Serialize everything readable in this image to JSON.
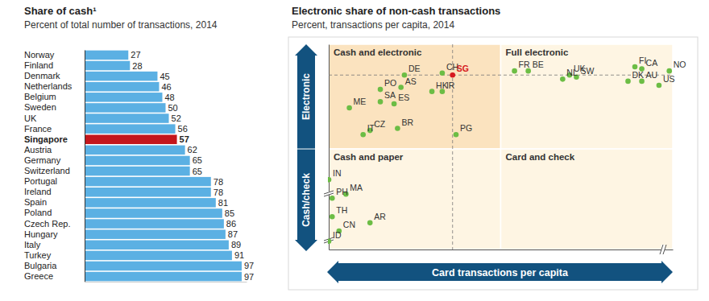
{
  "chart_data": [
    {
      "type": "bar",
      "title": "Share of cash¹",
      "subtitle": "Percent of total number of transactions, 2014",
      "orientation": "horizontal",
      "categories": [
        "Norway",
        "Finland",
        "Denmark",
        "Netherlands",
        "Belgium",
        "Sweden",
        "UK",
        "France",
        "Singapore",
        "Austria",
        "Germany",
        "Switzerland",
        "Portugal",
        "Ireland",
        "Spain",
        "Poland",
        "Czech Rep.",
        "Hungary",
        "Italy",
        "Turkey",
        "Bulgaria",
        "Greece"
      ],
      "values": [
        27,
        28,
        45,
        46,
        48,
        50,
        52,
        56,
        57,
        62,
        65,
        65,
        78,
        78,
        81,
        85,
        86,
        87,
        89,
        91,
        97,
        97
      ],
      "colors": [
        "#5bb0e3",
        "#5bb0e3",
        "#5bb0e3",
        "#5bb0e3",
        "#5bb0e3",
        "#5bb0e3",
        "#5bb0e3",
        "#5bb0e3",
        "#c4161c",
        "#5bb0e3",
        "#5bb0e3",
        "#5bb0e3",
        "#5bb0e3",
        "#5bb0e3",
        "#5bb0e3",
        "#5bb0e3",
        "#5bb0e3",
        "#5bb0e3",
        "#5bb0e3",
        "#5bb0e3",
        "#5bb0e3",
        "#5bb0e3"
      ],
      "xlim": [
        0,
        100
      ],
      "xticks": [],
      "tick_labels": "y",
      "data_labels": true
    },
    {
      "type": "scatter",
      "title": "Electronic share of non-cash transactions",
      "subtitle": "Percent, transactions per capita, 2014",
      "xlabel": "Card transactions per capita",
      "ylabel": {
        "high": "Electronic",
        "low": "Cash/check"
      },
      "point_labels": [
        "DE",
        "CH",
        "SG",
        "PO",
        "AS",
        "HK",
        "IR",
        "ME",
        "SA",
        "ES",
        "CZ",
        "IT",
        "BR",
        "PG",
        "FR",
        "BE",
        "UK",
        "SW",
        "NL",
        "FI",
        "CA",
        "NO",
        "DK",
        "AU",
        "US",
        "IN",
        "MA",
        "PH",
        "TH",
        "AR",
        "CN",
        "ID"
      ],
      "x": [
        22,
        33,
        36,
        15,
        21,
        30,
        33,
        6,
        15,
        19,
        12,
        10,
        20,
        37,
        54,
        58,
        70,
        72,
        68,
        89,
        91,
        99,
        87,
        91,
        96,
        0,
        5,
        1,
        1,
        12,
        3,
        0
      ],
      "values": [
        85,
        86,
        85,
        78,
        79,
        77,
        77,
        69,
        72,
        71,
        58,
        56,
        59,
        56,
        87,
        87,
        85,
        84,
        83,
        89,
        88,
        87,
        82,
        82,
        80,
        34,
        27,
        25,
        16,
        13,
        9,
        4
      ],
      "colors": [
        "#6cbd45",
        "#6cbd45",
        "#d71920",
        "#6cbd45",
        "#6cbd45",
        "#6cbd45",
        "#6cbd45",
        "#6cbd45",
        "#6cbd45",
        "#6cbd45",
        "#6cbd45",
        "#6cbd45",
        "#6cbd45",
        "#6cbd45",
        "#6cbd45",
        "#6cbd45",
        "#6cbd45",
        "#6cbd45",
        "#6cbd45",
        "#6cbd45",
        "#6cbd45",
        "#6cbd45",
        "#6cbd45",
        "#6cbd45",
        "#6cbd45",
        "#6cbd45",
        "#6cbd45",
        "#6cbd45",
        "#6cbd45",
        "#6cbd45",
        "#6cbd45",
        "#6cbd45"
      ],
      "xlim": [
        0,
        100
      ],
      "ylim": [
        0,
        100
      ],
      "xticks": [],
      "yticks": [],
      "tick_labels": false,
      "quadrant_split": {
        "x": 50,
        "y": 49
      },
      "quadrants": [
        {
          "label": "Cash and electronic",
          "position": "top-left",
          "color": "#fbe3bf"
        },
        {
          "label": "Full electronic",
          "position": "top-right",
          "color": "#fef5e3"
        },
        {
          "label": "Cash and paper",
          "position": "bottom-left",
          "color": "#fef5e3"
        },
        {
          "label": "Card and check",
          "position": "bottom-right",
          "color": "#fef5e3"
        }
      ]
    }
  ]
}
